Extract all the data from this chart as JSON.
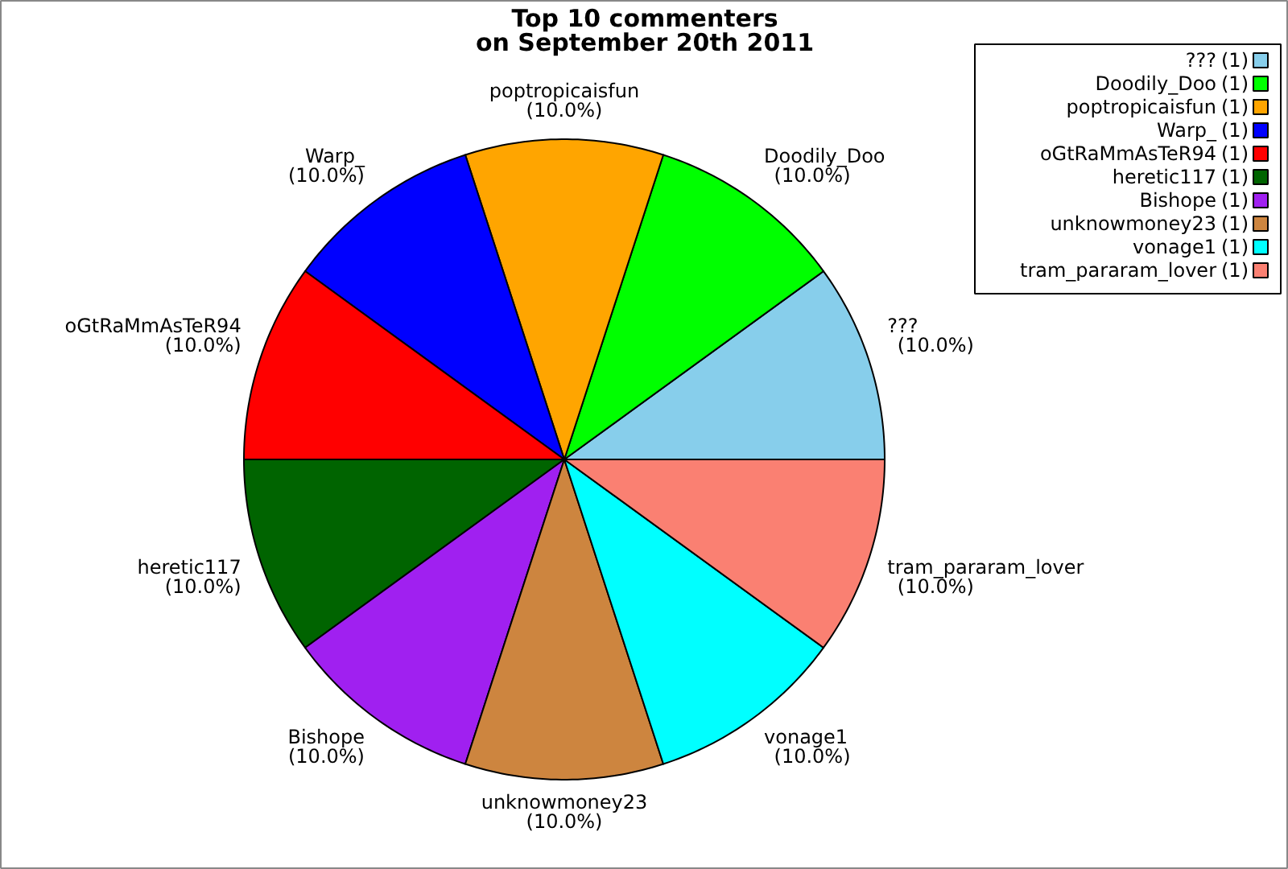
{
  "chart_data": {
    "type": "pie",
    "title": "Top 10 commenters\non September 20th 2011",
    "categories": [
      "???",
      "Doodily_Doo",
      "poptropicaisfun",
      "Warp_",
      "oGtRaMmAsTeR94",
      "heretic117",
      "Bishope",
      "unknowmoney23",
      "vonage1",
      "tram_pararam_lover"
    ],
    "values": [
      10.0,
      10.0,
      10.0,
      10.0,
      10.0,
      10.0,
      10.0,
      10.0,
      10.0,
      10.0
    ],
    "value_labels": [
      "(10.0%)",
      "(10.0%)",
      "(10.0%)",
      "(10.0%)",
      "(10.0%)",
      "(10.0%)",
      "(10.0%)",
      "(10.0%)",
      "(10.0%)",
      "(10.0%)"
    ],
    "colors": [
      "#87ceeb",
      "#00ff00",
      "#ffa500",
      "#0000ff",
      "#ff0000",
      "#006400",
      "#a020f0",
      "#cd853f",
      "#00ffff",
      "#fa8072"
    ],
    "annotations": [
      "(1)",
      "(1)",
      "(1)",
      "(1)",
      "(1)",
      "(1)",
      "(1)",
      "(1)",
      "(1)",
      "(1)"
    ],
    "legend": "top right"
  }
}
